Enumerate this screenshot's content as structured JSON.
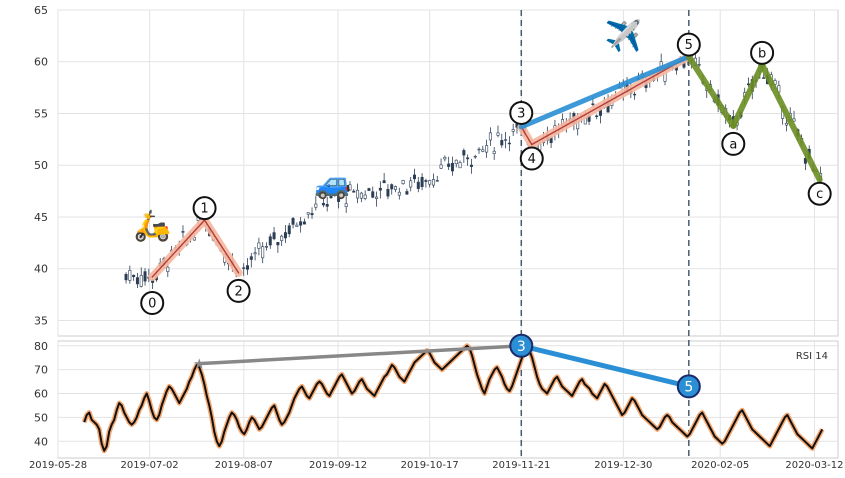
{
  "chart_data": {
    "type": "candlestick",
    "x_ticks": [
      "2019-05-28",
      "2019-07-02",
      "2019-08-07",
      "2019-09-12",
      "2019-10-17",
      "2019-11-21",
      "2019-12-30",
      "2020-02-05",
      "2020-03-12"
    ],
    "price_axis": {
      "ylim": [
        33.5,
        65
      ],
      "ticks": [
        35,
        40,
        45,
        50,
        55,
        60,
        65
      ]
    },
    "rsi_axis": {
      "label": "RSI 14",
      "ylim": [
        33,
        82
      ],
      "ticks": [
        40,
        50,
        60,
        70,
        80
      ]
    },
    "x_range_days": [
      0,
      298
    ],
    "vertical_markers": [
      {
        "label": "wave-3-marker",
        "day": 177
      },
      {
        "label": "wave-5-marker",
        "day": 241
      }
    ],
    "elliott_waves": {
      "impulse_labels": [
        {
          "label": "0",
          "day": 36,
          "price": 39.2
        },
        {
          "label": "1",
          "day": 56,
          "price": 44.7
        },
        {
          "label": "2",
          "day": 69,
          "price": 39.6
        },
        {
          "label": "3",
          "day": 177,
          "price": 53.7
        },
        {
          "label": "4",
          "day": 181,
          "price": 52.0
        },
        {
          "label": "5",
          "day": 241,
          "price": 60.5
        }
      ],
      "correction_labels": [
        {
          "label": "a",
          "day": 258,
          "price": 53.8
        },
        {
          "label": "b",
          "day": 269,
          "price": 59.7
        },
        {
          "label": "c",
          "day": 291,
          "price": 48.6
        }
      ],
      "icons": [
        "scooter-icon",
        "car-icon",
        "airplane-icon"
      ]
    },
    "rsi_divergence": {
      "previous_peak": {
        "day": 54,
        "value": 72.5
      },
      "wave3": {
        "label": "3",
        "day": 177,
        "value": 80
      },
      "wave5": {
        "label": "5",
        "day": 241,
        "value": 63
      }
    },
    "candles": [
      [
        0,
        39.6,
        40.0,
        39.3,
        39.6
      ],
      [
        1,
        39.7,
        40.1,
        39.5,
        40.2
      ],
      [
        2,
        40.2,
        40.7,
        40.1,
        40.5
      ],
      [
        3,
        40.1,
        40.3,
        39.8,
        40.0
      ],
      [
        4,
        39.6,
        40.0,
        39.3,
        39.8
      ],
      [
        5,
        39.2,
        39.5,
        38.5,
        38.7
      ],
      [
        6,
        38.6,
        38.8,
        38.0,
        38.2
      ],
      [
        7,
        38.5,
        39.0,
        38.3,
        38.9
      ],
      [
        8,
        39.0,
        39.2,
        38.5,
        39.1
      ],
      [
        9,
        39.2,
        39.5,
        38.8,
        39.4
      ],
      [
        10,
        39.4,
        39.8,
        39.2,
        39.6
      ],
      [
        11,
        39.7,
        40.3,
        39.3,
        40.1
      ],
      [
        12,
        40.1,
        40.4,
        39.7,
        39.9
      ],
      [
        13,
        39.8,
        40.2,
        39.5,
        40.1
      ],
      [
        14,
        40.0,
        40.5,
        39.6,
        40.3
      ],
      [
        15,
        40.2,
        40.8,
        40.1,
        40.7
      ],
      [
        16,
        40.8,
        41.2,
        40.4,
        40.5
      ],
      [
        17,
        40.5,
        40.9,
        40.0,
        40.3
      ],
      [
        18,
        40.2,
        40.5,
        39.9,
        40.4
      ],
      [
        19,
        40.4,
        40.9,
        40.2,
        40.8
      ],
      [
        20,
        40.9,
        41.5,
        40.7,
        41.3
      ],
      [
        21,
        41.4,
        41.9,
        41.1,
        41.8
      ],
      [
        22,
        41.9,
        42.1,
        41.4,
        41.6
      ],
      [
        23,
        41.6,
        42.3,
        41.5,
        42.2
      ],
      [
        24,
        42.3,
        42.8,
        42.1,
        42.6
      ],
      [
        25,
        42.7,
        43.2,
        42.5,
        43.0
      ],
      [
        26,
        43.1,
        43.4,
        42.6,
        42.8
      ],
      [
        27,
        42.9,
        43.5,
        42.7,
        43.3
      ],
      [
        28,
        43.4,
        43.9,
        43.2,
        43.7
      ],
      [
        29,
        43.8,
        44.2,
        43.5,
        44.0
      ],
      [
        30,
        44.0,
        44.6,
        43.8,
        44.5
      ],
      [
        31,
        44.5,
        45.0,
        44.2,
        44.7
      ],
      [
        32,
        44.6,
        44.8,
        44.0,
        44.2
      ],
      [
        33,
        44.2,
        44.4,
        43.5,
        43.7
      ],
      [
        34,
        43.6,
        43.9,
        42.8,
        43.0
      ],
      [
        35,
        43.0,
        43.2,
        42.2,
        42.4
      ],
      [
        36,
        42.3,
        42.6,
        41.5,
        41.8
      ],
      [
        37,
        41.7,
        41.9,
        40.8,
        41.0
      ],
      [
        38,
        41.0,
        41.3,
        40.2,
        40.4
      ],
      [
        39,
        40.4,
        40.6,
        39.6,
        39.9
      ],
      [
        40,
        40.0,
        40.6,
        39.8,
        40.4
      ],
      [
        41,
        40.4,
        40.8,
        40.1,
        40.6
      ],
      [
        42,
        40.6,
        41.0,
        40.3,
        40.8
      ],
      [
        43,
        40.8,
        41.2,
        40.5,
        41.0
      ],
      [
        44,
        41.0,
        41.4,
        40.6,
        41.2
      ],
      [
        45,
        41.2,
        41.5,
        40.9,
        41.3
      ],
      [
        46,
        41.3,
        41.8,
        41.1,
        41.6
      ],
      [
        47,
        41.6,
        42.0,
        41.3,
        41.8
      ],
      [
        48,
        41.8,
        42.1,
        41.4,
        41.7
      ],
      [
        49,
        41.7,
        42.3,
        41.5,
        42.1
      ],
      [
        50,
        42.1,
        42.5,
        41.9,
        42.4
      ],
      [
        51,
        42.4,
        42.9,
        42.2,
        42.7
      ],
      [
        52,
        42.7,
        43.1,
        42.4,
        42.9
      ],
      [
        53,
        42.9,
        43.4,
        42.7,
        43.2
      ],
      [
        54,
        43.2,
        43.6,
        43.0,
        43.5
      ],
      [
        55,
        43.5,
        43.9,
        43.2,
        43.7
      ],
      [
        56,
        43.7,
        44.2,
        43.4,
        44.0
      ],
      [
        57,
        44.0,
        44.4,
        43.7,
        44.2
      ],
      [
        58,
        44.2,
        44.7,
        44.0,
        44.5
      ],
      [
        59,
        44.5,
        44.9,
        44.1,
        44.6
      ],
      [
        60,
        44.6,
        45.1,
        44.4,
        44.9
      ],
      [
        61,
        44.9,
        45.4,
        44.6,
        45.2
      ],
      [
        62,
        45.2,
        45.6,
        44.9,
        45.4
      ],
      [
        63,
        45.4,
        45.9,
        45.2,
        45.7
      ],
      [
        64,
        45.7,
        46.1,
        45.4,
        45.9
      ],
      [
        65,
        45.9,
        46.4,
        45.6,
        46.2
      ],
      [
        66,
        46.2,
        46.6,
        45.9,
        46.4
      ],
      [
        67,
        46.4,
        46.9,
        46.2,
        46.7
      ],
      [
        68,
        46.7,
        47.1,
        46.4,
        46.9
      ],
      [
        69,
        46.9,
        47.4,
        46.6,
        47.2
      ],
      [
        70,
        47.2,
        47.6,
        46.9,
        47.4
      ],
      [
        71,
        47.4,
        47.9,
        47.2,
        47.7
      ],
      [
        72,
        47.7,
        48.1,
        47.4,
        47.9
      ],
      [
        73,
        47.9,
        48.4,
        47.6,
        48.2
      ],
      [
        74,
        48.2,
        48.6,
        47.9,
        48.4
      ],
      [
        75,
        48.4,
        48.9,
        48.2,
        48.7
      ],
      [
        76,
        48.7,
        49.1,
        48.4,
        48.9
      ],
      [
        77,
        48.9,
        49.4,
        48.6,
        49.2
      ],
      [
        78,
        49.2,
        49.6,
        48.9,
        49.4
      ],
      [
        79,
        49.4,
        49.9,
        49.2,
        49.7
      ],
      [
        80,
        49.7,
        50.1,
        49.4,
        49.9
      ],
      [
        81,
        49.9,
        50.4,
        49.6,
        50.2
      ],
      [
        82,
        50.2,
        50.6,
        49.9,
        50.4
      ],
      [
        83,
        50.4,
        50.9,
        50.2,
        50.7
      ],
      [
        84,
        50.7,
        51.1,
        50.4,
        50.9
      ],
      [
        85,
        50.9,
        51.4,
        50.6,
        51.2
      ],
      [
        86,
        51.2,
        51.6,
        50.9,
        51.4
      ],
      [
        87,
        51.4,
        51.9,
        51.2,
        51.7
      ],
      [
        88,
        51.7,
        52.1,
        51.4,
        51.9
      ],
      [
        89,
        51.9,
        52.4,
        51.6,
        52.2
      ],
      [
        90,
        52.2,
        52.6,
        51.9,
        52.4
      ],
      [
        91,
        52.4,
        52.9,
        52.2,
        52.7
      ],
      [
        92,
        52.7,
        53.1,
        52.4,
        52.9
      ],
      [
        93,
        52.9,
        53.4,
        52.6,
        53.2
      ],
      [
        94,
        53.2,
        53.6,
        52.9,
        53.4
      ],
      [
        95,
        53.4,
        53.9,
        53.2,
        53.7
      ]
    ],
    "rsi": [
      48,
      51,
      52,
      49,
      48,
      47,
      45,
      39,
      36,
      38,
      44,
      47,
      49,
      53,
      56,
      55,
      52,
      50,
      48,
      47,
      48,
      50,
      53,
      55,
      58,
      60,
      57,
      53,
      50,
      49,
      51,
      55,
      58,
      61,
      63,
      62,
      60,
      58,
      56,
      58,
      60,
      62,
      65,
      67,
      70,
      72,
      71,
      68,
      64,
      59,
      55,
      50,
      44,
      40,
      38,
      40,
      44,
      47,
      50,
      52,
      51,
      49,
      46,
      44,
      43,
      45,
      48,
      50,
      49,
      47,
      45,
      46,
      48,
      50,
      52,
      54,
      55,
      52,
      49,
      47,
      48,
      50,
      52,
      55,
      58,
      60,
      62,
      63,
      61,
      59,
      58,
      60,
      62,
      64,
      65,
      64,
      62,
      60,
      59,
      61,
      63,
      65,
      67,
      68,
      66,
      64,
      62,
      60,
      61,
      63,
      65,
      66,
      64,
      62,
      61,
      60,
      59,
      61,
      63,
      65,
      67,
      68,
      70,
      72,
      71,
      69,
      67,
      66,
      65,
      67,
      69,
      71,
      73,
      74,
      75,
      76,
      77,
      78,
      77,
      75,
      73,
      72,
      71,
      70,
      71,
      72,
      73,
      74,
      75,
      76,
      77,
      78,
      79,
      80,
      79,
      76,
      72,
      68,
      65,
      62,
      60,
      63,
      66,
      68,
      70,
      71,
      69,
      67,
      64,
      62,
      61,
      63,
      66,
      69,
      72,
      75,
      78,
      79,
      78,
      75,
      71,
      67,
      64,
      62,
      61,
      60,
      62,
      64,
      66,
      67,
      65,
      63,
      62,
      61,
      60,
      59,
      61,
      63,
      65,
      66,
      64,
      63,
      62,
      60,
      59,
      58,
      60,
      62,
      64,
      63,
      61,
      59,
      57,
      55,
      53,
      51,
      52,
      54,
      56,
      58,
      57,
      55,
      53,
      51,
      50,
      49,
      48,
      47,
      46,
      45,
      46,
      48,
      50,
      51,
      50,
      48,
      47,
      46,
      45,
      44,
      43,
      42,
      43,
      45,
      47,
      49,
      51,
      52,
      50,
      48,
      46,
      44,
      42,
      41,
      40,
      39,
      40,
      42,
      44,
      46,
      48,
      50,
      52,
      53,
      51,
      49,
      47,
      45,
      44,
      43,
      42,
      41,
      40,
      39,
      38,
      40,
      42,
      44,
      46,
      48,
      50,
      51,
      49,
      47,
      45,
      43,
      42,
      41,
      40,
      39,
      38,
      37,
      39,
      41,
      43,
      45
    ]
  }
}
